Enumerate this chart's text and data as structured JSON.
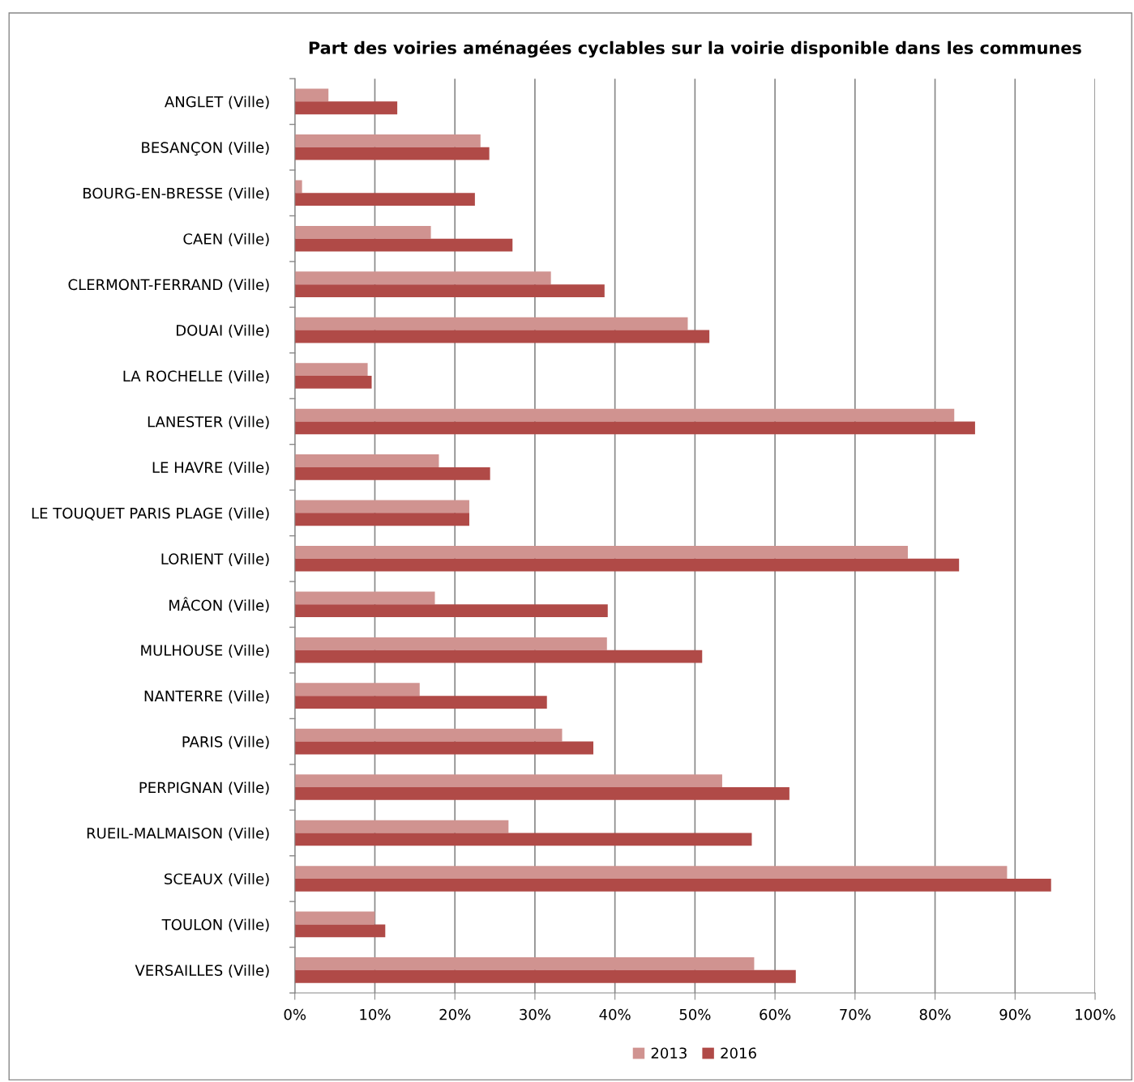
{
  "chart_data": {
    "type": "bar",
    "orientation": "horizontal",
    "title": "Part des voiries aménagées cyclables sur la voirie disponible dans les communes",
    "categories": [
      "ANGLET (Ville)",
      "BESANÇON (Ville)",
      "BOURG-EN-BRESSE (Ville)",
      "CAEN (Ville)",
      "CLERMONT-FERRAND (Ville)",
      "DOUAI (Ville)",
      "LA ROCHELLE (Ville)",
      "LANESTER (Ville)",
      "LE HAVRE (Ville)",
      "LE TOUQUET PARIS PLAGE (Ville)",
      "LORIENT (Ville)",
      "MÂCON (Ville)",
      "MULHOUSE (Ville)",
      "NANTERRE (Ville)",
      "PARIS (Ville)",
      "PERPIGNAN (Ville)",
      "RUEIL-MALMAISON (Ville)",
      "SCEAUX (Ville)",
      "TOULON (Ville)",
      "VERSAILLES (Ville)"
    ],
    "series": [
      {
        "name": "2013",
        "color": "#d09390",
        "values": [
          4.2,
          23.2,
          0.9,
          17.0,
          32.0,
          49.1,
          9.1,
          82.4,
          18.0,
          21.8,
          76.6,
          17.5,
          39.0,
          15.6,
          33.4,
          53.4,
          26.7,
          89.0,
          10.0,
          57.4
        ]
      },
      {
        "name": "2016",
        "color": "#b04a47",
        "values": [
          12.8,
          24.3,
          22.5,
          27.2,
          38.7,
          51.8,
          9.6,
          85.0,
          24.4,
          21.8,
          83.0,
          39.1,
          50.9,
          31.5,
          37.3,
          61.8,
          57.1,
          94.5,
          11.3,
          62.6
        ]
      }
    ],
    "xlim": [
      0,
      100
    ],
    "xticks": [
      {
        "value": 0,
        "label": "0%"
      },
      {
        "value": 10,
        "label": "10%"
      },
      {
        "value": 20,
        "label": "20%"
      },
      {
        "value": 30,
        "label": "30%"
      },
      {
        "value": 40,
        "label": "40%"
      },
      {
        "value": 50,
        "label": "50%"
      },
      {
        "value": 60,
        "label": "60%"
      },
      {
        "value": 70,
        "label": "70%"
      },
      {
        "value": 80,
        "label": "80%"
      },
      {
        "value": 90,
        "label": "90%"
      },
      {
        "value": 100,
        "label": "100%"
      }
    ],
    "grid": "x",
    "legend": "bottom"
  }
}
